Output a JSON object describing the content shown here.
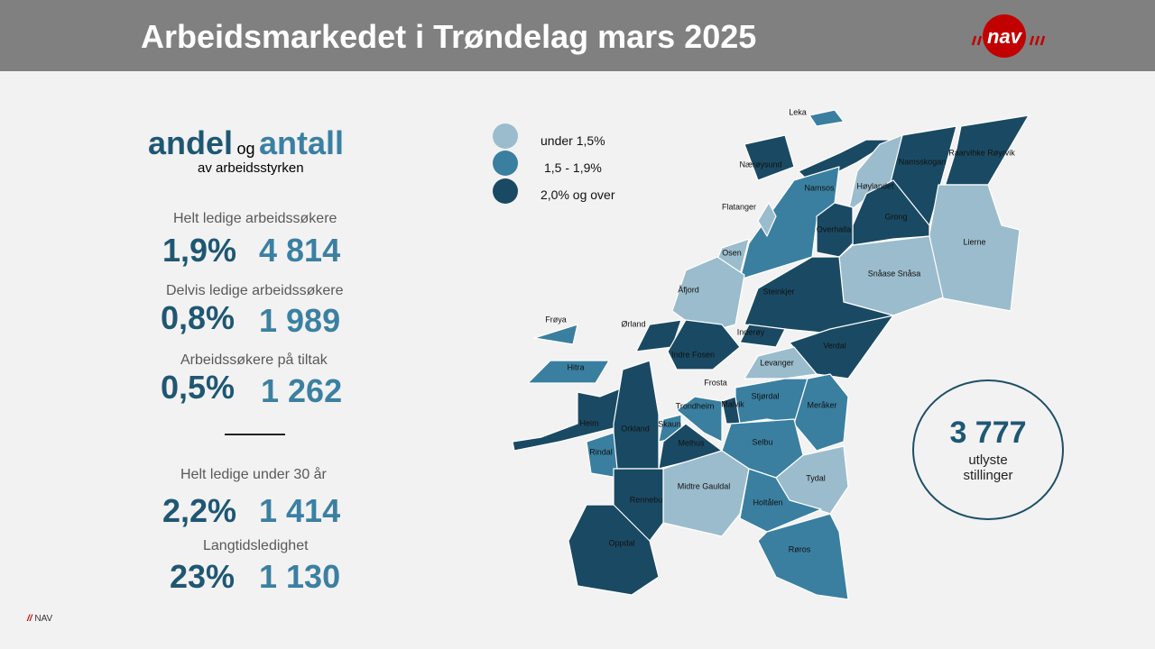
{
  "header": {
    "title": "Arbeidsmarkedet i Trøndelag mars 2025",
    "logo_text": "nav"
  },
  "left": {
    "heading_a": "andel",
    "heading_og": "og",
    "heading_b": "antall",
    "subheading": "av arbeidsstyrken",
    "stats": [
      {
        "label": "Helt ledige arbeidssøkere",
        "share": "1,9%",
        "count": "4 814"
      },
      {
        "label": "Delvis ledige arbeidssøkere",
        "share": "0,8%",
        "count": "1 989"
      },
      {
        "label": "Arbeidssøkere på tiltak",
        "share": "0,5%",
        "count": "1 262"
      },
      {
        "label": "Helt ledige under 30 år",
        "share": "2,2%",
        "count": "1 414"
      },
      {
        "label": "Langtidsledighet",
        "share": "23%",
        "count": "1 130"
      }
    ]
  },
  "legend": {
    "items": [
      {
        "label": "under 1,5%",
        "color": "#9bbccc"
      },
      {
        "label": "1,5 - 1,9%",
        "color": "#3a7fa0"
      },
      {
        "label": "2,0% og over",
        "color": "#1a4a63"
      }
    ]
  },
  "map": {
    "municipalities": [
      {
        "name": "Leka",
        "cat": 1
      },
      {
        "name": "Nærøysund",
        "cat": 2
      },
      {
        "name": "Raarvihke Røyrvik",
        "cat": 2
      },
      {
        "name": "Namsskogan",
        "cat": 2
      },
      {
        "name": "Høylandet",
        "cat": 0
      },
      {
        "name": "Namsos",
        "cat": 1
      },
      {
        "name": "Grong",
        "cat": 2
      },
      {
        "name": "Overhalla",
        "cat": 2
      },
      {
        "name": "Flatanger",
        "cat": 0
      },
      {
        "name": "Lierne",
        "cat": 0
      },
      {
        "name": "Osen",
        "cat": 0
      },
      {
        "name": "Snåase Snåsa",
        "cat": 0
      },
      {
        "name": "Åfjord",
        "cat": 0
      },
      {
        "name": "Steinkjer",
        "cat": 2
      },
      {
        "name": "Frøya",
        "cat": 1
      },
      {
        "name": "Ørland",
        "cat": 2
      },
      {
        "name": "Inderøy",
        "cat": 2
      },
      {
        "name": "Verdal",
        "cat": 2
      },
      {
        "name": "Indre Fosen",
        "cat": 2
      },
      {
        "name": "Levanger",
        "cat": 0
      },
      {
        "name": "Hitra",
        "cat": 1
      },
      {
        "name": "Frosta",
        "cat": 0
      },
      {
        "name": "Stjørdal",
        "cat": 1
      },
      {
        "name": "Meråker",
        "cat": 1
      },
      {
        "name": "Trondheim",
        "cat": 1
      },
      {
        "name": "Malvik",
        "cat": 2
      },
      {
        "name": "Heim",
        "cat": 2
      },
      {
        "name": "Orkland",
        "cat": 2
      },
      {
        "name": "Skaun",
        "cat": 1
      },
      {
        "name": "Melhus",
        "cat": 2
      },
      {
        "name": "Rindal",
        "cat": 1
      },
      {
        "name": "Selbu",
        "cat": 1
      },
      {
        "name": "Tydal",
        "cat": 0
      },
      {
        "name": "Midtre Gauldal",
        "cat": 0
      },
      {
        "name": "Rennebu",
        "cat": 2
      },
      {
        "name": "Holtålen",
        "cat": 1
      },
      {
        "name": "Oppdal",
        "cat": 2
      },
      {
        "name": "Røros",
        "cat": 1
      }
    ]
  },
  "vacancies": {
    "count": "3 777",
    "label_line1": "utlyste",
    "label_line2": "stillinger"
  },
  "footer": {
    "slashes": "//",
    "brand": "NAV"
  }
}
